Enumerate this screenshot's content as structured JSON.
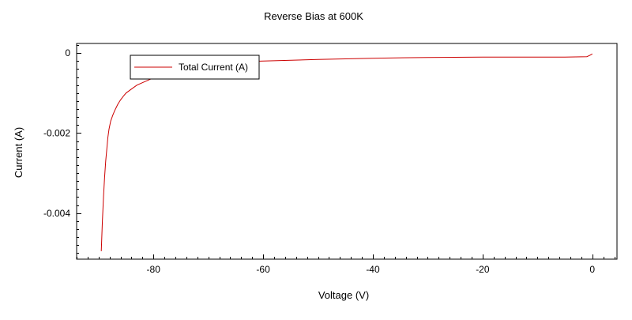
{
  "chart_data": {
    "type": "line",
    "title": "Reverse Bias at 600K",
    "xlabel": "Voltage (V)",
    "ylabel": "Current (A)",
    "xlim": [
      -94,
      4.5
    ],
    "ylim": [
      -0.00515,
      0.00024
    ],
    "x_ticks": [
      -80,
      -60,
      -40,
      -20,
      0
    ],
    "x_tick_labels": [
      "-80",
      "-60",
      "-40",
      "-20",
      "0"
    ],
    "y_ticks": [
      0,
      -0.002,
      -0.004
    ],
    "y_tick_labels": [
      "0",
      "-0.002",
      "-0.004"
    ],
    "grid": false,
    "legend_position": "top-left",
    "series": [
      {
        "name": "Total Current (A)",
        "color": "#cc0000",
        "x": [
          -89.5,
          -89.3,
          -89.1,
          -88.9,
          -88.7,
          -88.5,
          -88.3,
          -88.1,
          -87.8,
          -87.4,
          -87.0,
          -86.5,
          -86.0,
          -85.5,
          -85.0,
          -84.0,
          -83.0,
          -81.0,
          -78.0,
          -75.0,
          -70.0,
          -65.0,
          -60.0,
          -50.0,
          -40.0,
          -30.0,
          -20.0,
          -10.0,
          -5.0,
          -1.0,
          -0.5,
          0.0
        ],
        "y": [
          -0.00495,
          -0.0042,
          -0.0036,
          -0.0031,
          -0.0027,
          -0.0024,
          -0.0021,
          -0.0019,
          -0.0017,
          -0.00155,
          -0.00142,
          -0.00128,
          -0.00117,
          -0.00108,
          -0.001,
          -0.0009,
          -0.0008,
          -0.00068,
          -0.0005,
          -0.00038,
          -0.00028,
          -0.00022,
          -0.0002,
          -0.00016,
          -0.00013,
          -0.00011,
          -0.0001,
          -0.0001,
          -0.0001,
          -9e-05,
          -6e-05,
          -2e-05
        ]
      }
    ]
  }
}
